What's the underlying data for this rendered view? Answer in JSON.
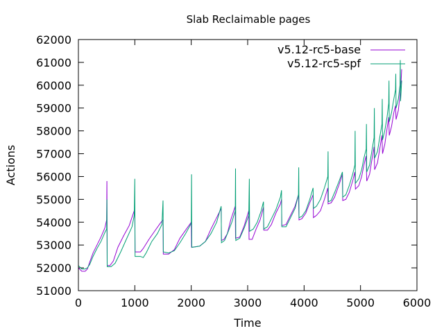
{
  "chart_data": {
    "type": "line",
    "title": "Slab Reclaimable pages",
    "xlabel": "Time",
    "ylabel": "Actions",
    "xlim": [
      0,
      6000
    ],
    "ylim": [
      51000,
      62000
    ],
    "xticks": [
      0,
      1000,
      2000,
      3000,
      4000,
      5000,
      6000
    ],
    "yticks": [
      51000,
      52000,
      53000,
      54000,
      55000,
      56000,
      57000,
      58000,
      59000,
      60000,
      61000,
      62000
    ],
    "grid": false,
    "legend_position": "top-right",
    "series": [
      {
        "name": "v5.12-rc5-base",
        "color": "#9400d3",
        "points": [
          [
            0,
            52000
          ],
          [
            60,
            51850
          ],
          [
            120,
            51850
          ],
          [
            160,
            51950
          ],
          [
            200,
            52250
          ],
          [
            260,
            52650
          ],
          [
            330,
            53000
          ],
          [
            400,
            53350
          ],
          [
            470,
            53750
          ],
          [
            500,
            54100
          ],
          [
            505,
            55800
          ],
          [
            510,
            52100
          ],
          [
            560,
            52100
          ],
          [
            620,
            52300
          ],
          [
            700,
            52900
          ],
          [
            800,
            53400
          ],
          [
            900,
            53850
          ],
          [
            990,
            54500
          ],
          [
            1000,
            54400
          ],
          [
            1005,
            52700
          ],
          [
            1050,
            52700
          ],
          [
            1100,
            52700
          ],
          [
            1150,
            52850
          ],
          [
            1250,
            53250
          ],
          [
            1350,
            53600
          ],
          [
            1450,
            53950
          ],
          [
            1500,
            54100
          ],
          [
            1505,
            52600
          ],
          [
            1600,
            52600
          ],
          [
            1700,
            52800
          ],
          [
            1800,
            53300
          ],
          [
            1900,
            53650
          ],
          [
            2000,
            54000
          ],
          [
            2005,
            52900
          ],
          [
            2150,
            52950
          ],
          [
            2250,
            53150
          ],
          [
            2350,
            53700
          ],
          [
            2450,
            54200
          ],
          [
            2530,
            54600
          ],
          [
            2535,
            53200
          ],
          [
            2580,
            53250
          ],
          [
            2640,
            53500
          ],
          [
            2700,
            54100
          ],
          [
            2780,
            54700
          ],
          [
            2785,
            53300
          ],
          [
            2860,
            53350
          ],
          [
            2940,
            53850
          ],
          [
            3020,
            54500
          ],
          [
            3025,
            53250
          ],
          [
            3080,
            53250
          ],
          [
            3150,
            53700
          ],
          [
            3220,
            54100
          ],
          [
            3280,
            54650
          ],
          [
            3285,
            53650
          ],
          [
            3350,
            53650
          ],
          [
            3420,
            53900
          ],
          [
            3500,
            54400
          ],
          [
            3580,
            54800
          ],
          [
            3600,
            55000
          ],
          [
            3605,
            53850
          ],
          [
            3680,
            53900
          ],
          [
            3760,
            54300
          ],
          [
            3840,
            54700
          ],
          [
            3900,
            55200
          ],
          [
            3910,
            54100
          ],
          [
            3960,
            54150
          ],
          [
            4030,
            54400
          ],
          [
            4100,
            54850
          ],
          [
            4160,
            55200
          ],
          [
            4165,
            54200
          ],
          [
            4220,
            54300
          ],
          [
            4290,
            54500
          ],
          [
            4360,
            55000
          ],
          [
            4420,
            55500
          ],
          [
            4425,
            54800
          ],
          [
            4480,
            54850
          ],
          [
            4540,
            55100
          ],
          [
            4620,
            55650
          ],
          [
            4680,
            56100
          ],
          [
            4685,
            54950
          ],
          [
            4740,
            55000
          ],
          [
            4800,
            55300
          ],
          [
            4860,
            55800
          ],
          [
            4900,
            56200
          ],
          [
            4910,
            55450
          ],
          [
            4970,
            55600
          ],
          [
            5020,
            56000
          ],
          [
            5060,
            56500
          ],
          [
            5100,
            56900
          ],
          [
            5110,
            55800
          ],
          [
            5160,
            56100
          ],
          [
            5200,
            56700
          ],
          [
            5240,
            57300
          ],
          [
            5250,
            56300
          ],
          [
            5300,
            56600
          ],
          [
            5340,
            57200
          ],
          [
            5380,
            57800
          ],
          [
            5390,
            57000
          ],
          [
            5430,
            57400
          ],
          [
            5470,
            58100
          ],
          [
            5500,
            58600
          ],
          [
            5510,
            57800
          ],
          [
            5550,
            58200
          ],
          [
            5590,
            58800
          ],
          [
            5620,
            59100
          ],
          [
            5630,
            58500
          ],
          [
            5670,
            58900
          ],
          [
            5700,
            59600
          ],
          [
            5720,
            60200
          ],
          [
            5730,
            60700
          ]
        ]
      },
      {
        "name": "v5.12-rc5-spf",
        "color": "#009e73",
        "points": [
          [
            0,
            52100
          ],
          [
            60,
            51950
          ],
          [
            120,
            51950
          ],
          [
            160,
            52000
          ],
          [
            200,
            52150
          ],
          [
            260,
            52500
          ],
          [
            330,
            52850
          ],
          [
            400,
            53150
          ],
          [
            470,
            53550
          ],
          [
            500,
            53700
          ],
          [
            505,
            55000
          ],
          [
            510,
            52050
          ],
          [
            580,
            52050
          ],
          [
            650,
            52200
          ],
          [
            750,
            52700
          ],
          [
            850,
            53250
          ],
          [
            950,
            53800
          ],
          [
            990,
            54300
          ],
          [
            1000,
            55900
          ],
          [
            1005,
            52500
          ],
          [
            1100,
            52500
          ],
          [
            1150,
            52450
          ],
          [
            1200,
            52650
          ],
          [
            1300,
            53150
          ],
          [
            1400,
            53500
          ],
          [
            1480,
            53900
          ],
          [
            1500,
            54950
          ],
          [
            1505,
            52700
          ],
          [
            1600,
            52650
          ],
          [
            1700,
            52750
          ],
          [
            1800,
            53100
          ],
          [
            1900,
            53500
          ],
          [
            2000,
            53950
          ],
          [
            2005,
            56100
          ],
          [
            2010,
            52900
          ],
          [
            2150,
            52950
          ],
          [
            2250,
            53150
          ],
          [
            2350,
            53500
          ],
          [
            2450,
            54000
          ],
          [
            2530,
            54700
          ],
          [
            2535,
            53100
          ],
          [
            2590,
            53200
          ],
          [
            2650,
            53550
          ],
          [
            2720,
            54000
          ],
          [
            2780,
            54500
          ],
          [
            2785,
            56350
          ],
          [
            2790,
            53200
          ],
          [
            2860,
            53300
          ],
          [
            2940,
            53750
          ],
          [
            3020,
            54300
          ],
          [
            3030,
            55900
          ],
          [
            3035,
            53600
          ],
          [
            3100,
            53700
          ],
          [
            3170,
            54000
          ],
          [
            3240,
            54500
          ],
          [
            3280,
            54900
          ],
          [
            3285,
            53700
          ],
          [
            3350,
            53800
          ],
          [
            3420,
            54150
          ],
          [
            3500,
            54550
          ],
          [
            3580,
            55100
          ],
          [
            3600,
            55400
          ],
          [
            3605,
            53800
          ],
          [
            3680,
            53800
          ],
          [
            3760,
            54200
          ],
          [
            3840,
            54600
          ],
          [
            3900,
            55200
          ],
          [
            3905,
            56400
          ],
          [
            3910,
            54200
          ],
          [
            3960,
            54250
          ],
          [
            4030,
            54500
          ],
          [
            4100,
            55000
          ],
          [
            4160,
            55500
          ],
          [
            4165,
            54600
          ],
          [
            4220,
            54700
          ],
          [
            4290,
            55000
          ],
          [
            4360,
            55500
          ],
          [
            4420,
            56000
          ],
          [
            4425,
            57100
          ],
          [
            4430,
            54900
          ],
          [
            4480,
            54950
          ],
          [
            4540,
            55300
          ],
          [
            4620,
            55800
          ],
          [
            4680,
            56200
          ],
          [
            4685,
            55100
          ],
          [
            4740,
            55200
          ],
          [
            4800,
            55600
          ],
          [
            4860,
            56100
          ],
          [
            4900,
            56500
          ],
          [
            4905,
            58000
          ],
          [
            4910,
            55700
          ],
          [
            4970,
            55900
          ],
          [
            5020,
            56300
          ],
          [
            5060,
            56800
          ],
          [
            5100,
            57200
          ],
          [
            5105,
            58300
          ],
          [
            5110,
            56200
          ],
          [
            5160,
            56500
          ],
          [
            5200,
            57100
          ],
          [
            5240,
            57700
          ],
          [
            5245,
            59000
          ],
          [
            5250,
            56800
          ],
          [
            5300,
            57100
          ],
          [
            5340,
            57700
          ],
          [
            5380,
            58300
          ],
          [
            5385,
            59400
          ],
          [
            5390,
            57600
          ],
          [
            5430,
            58000
          ],
          [
            5470,
            58600
          ],
          [
            5500,
            59200
          ],
          [
            5505,
            60200
          ],
          [
            5510,
            58400
          ],
          [
            5550,
            58800
          ],
          [
            5590,
            59400
          ],
          [
            5620,
            59800
          ],
          [
            5625,
            60500
          ],
          [
            5630,
            59000
          ],
          [
            5670,
            59400
          ],
          [
            5700,
            60000
          ],
          [
            5705,
            61100
          ],
          [
            5710,
            59300
          ],
          [
            5730,
            60200
          ]
        ]
      }
    ]
  }
}
